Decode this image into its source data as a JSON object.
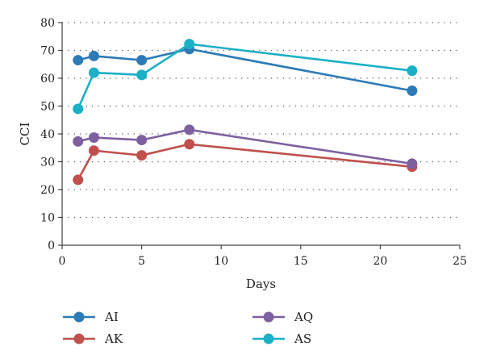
{
  "chart_data": {
    "type": "line",
    "title": "",
    "xlabel": "Days",
    "ylabel": "CCI",
    "xlim": [
      0,
      25
    ],
    "ylim": [
      0,
      80
    ],
    "xticks": [
      0,
      5,
      10,
      15,
      20,
      25
    ],
    "yticks": [
      0,
      10,
      20,
      30,
      40,
      50,
      60,
      70,
      80
    ],
    "grid": "horizontal dotted",
    "legend_placement": "bottom",
    "series": [
      {
        "name": "AI",
        "color": "#2c7bb6",
        "x": [
          1,
          2,
          5,
          8,
          22
        ],
        "y": [
          66.5,
          68.0,
          66.5,
          70.5,
          55.5
        ]
      },
      {
        "name": "AK",
        "color": "#c0504d",
        "x": [
          1,
          2,
          5,
          8,
          22
        ],
        "y": [
          23.5,
          34.0,
          32.3,
          36.3,
          28.2
        ]
      },
      {
        "name": "AQ",
        "color": "#7d60a0",
        "x": [
          1,
          2,
          5,
          8,
          22
        ],
        "y": [
          37.3,
          38.7,
          37.8,
          41.5,
          29.3
        ]
      },
      {
        "name": "AS",
        "color": "#1ab0c6",
        "x": [
          1,
          2,
          5,
          8,
          22
        ],
        "y": [
          49.0,
          62.0,
          61.2,
          72.3,
          62.7
        ]
      }
    ]
  }
}
